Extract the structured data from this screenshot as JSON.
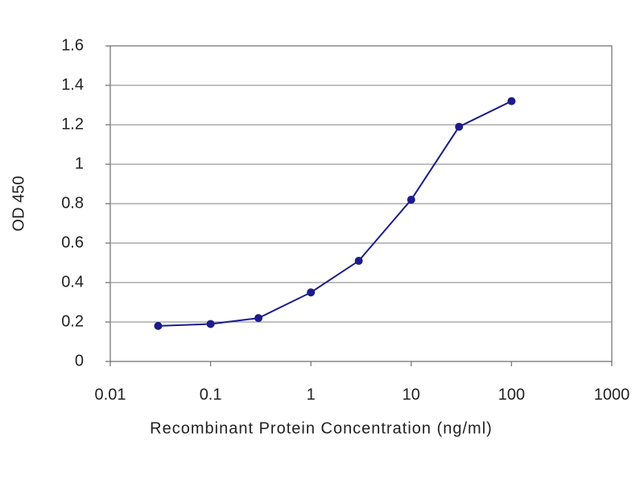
{
  "chart_data": {
    "type": "line",
    "x_label": "Recombinant Protein Concentration (ng/ml)",
    "y_label": "OD 450",
    "x": [
      0.03,
      0.1,
      0.3,
      1,
      3,
      10,
      30,
      100
    ],
    "series": [
      {
        "color": "#1c1c8a",
        "values": [
          0.18,
          0.19,
          0.22,
          0.35,
          0.51,
          0.82,
          1.19,
          1.32
        ]
      }
    ],
    "xlim": [
      0.01,
      1000
    ],
    "xticks": [
      0.01,
      0.1,
      1,
      10,
      100,
      1000
    ],
    "x_scale": "log",
    "ylim": [
      0,
      1.6
    ],
    "yticks": [
      0,
      0.2,
      0.4,
      0.6,
      0.8,
      1,
      1.2,
      1.4,
      1.6
    ],
    "grid": true
  }
}
